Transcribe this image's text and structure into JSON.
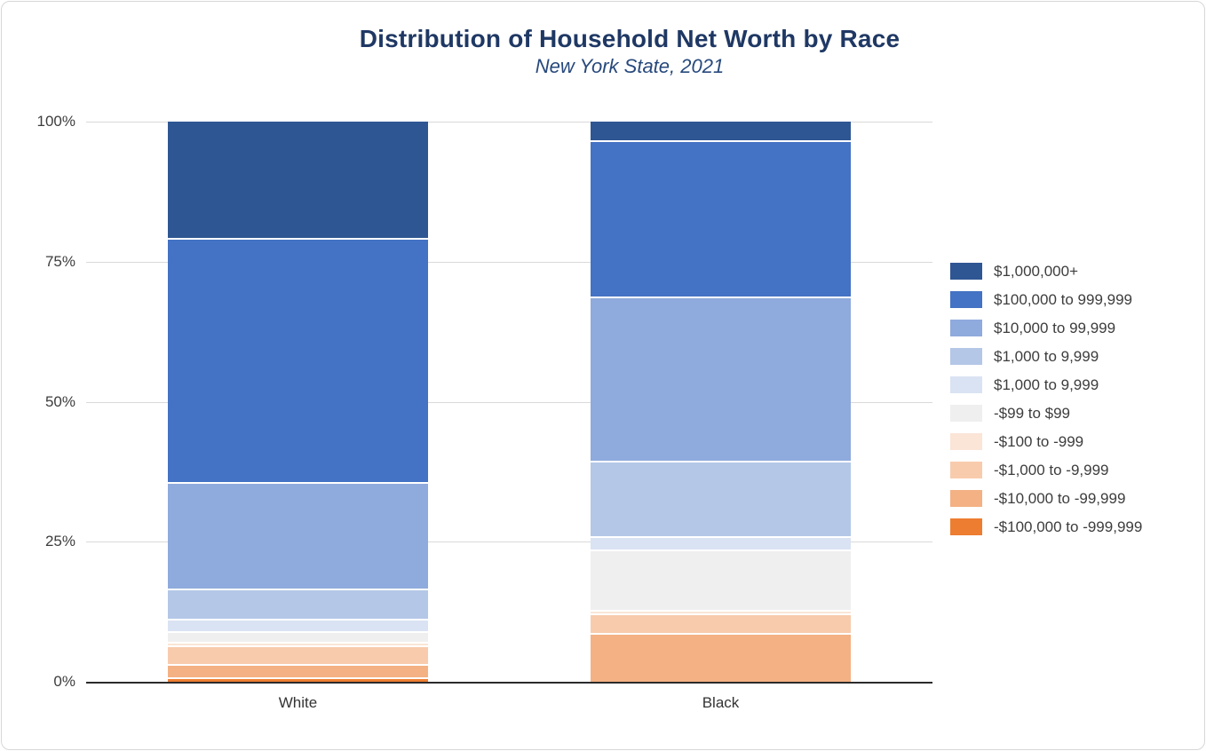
{
  "chart_data": {
    "type": "bar",
    "variant": "100-percent-stacked-vertical",
    "title": "Distribution of Household Net Worth by Race",
    "subtitle": "New York State, 2021",
    "categories": [
      "White",
      "Black"
    ],
    "y_ticks": [
      "100%",
      "75%",
      "50%",
      "25%",
      "0%"
    ],
    "ylim": [
      0,
      100
    ],
    "grid": true,
    "legend_position": "right",
    "axis_color": "#2b2b2b",
    "gridline_color": "#d9d9d9",
    "title_color": "#1f3864",
    "series": [
      {
        "name": "$1,000,000+",
        "color": "#2e5693",
        "values": [
          20.8,
          3.3
        ]
      },
      {
        "name": "$100,000 to 999,999",
        "color": "#4472c4",
        "values": [
          43.5,
          27.9
        ]
      },
      {
        "name": "$10,000 to 99,999",
        "color": "#8faadc",
        "values": [
          19.0,
          29.3
        ]
      },
      {
        "name": "$1,000 to 9,999",
        "color": "#b4c7e7",
        "values": [
          5.5,
          13.5
        ]
      },
      {
        "name": "$1,000 to 9,999",
        "color": "#dae3f3",
        "values": [
          2.2,
          2.4
        ]
      },
      {
        "name": "-$99 to $99",
        "color": "#efefef",
        "values": [
          1.8,
          10.8
        ]
      },
      {
        "name": "-$100 to -999",
        "color": "#fbe5d6",
        "values": [
          0.7,
          0.6
        ]
      },
      {
        "name": "-$1,000 to -9,999",
        "color": "#f8cbad",
        "values": [
          3.3,
          3.5
        ]
      },
      {
        "name": "-$10,000 to -99,999",
        "color": "#f4b183",
        "values": [
          2.4,
          8.7
        ]
      },
      {
        "name": "-$100,000 to -999,999",
        "color": "#ed7d31",
        "values": [
          0.8,
          0.0
        ]
      }
    ]
  }
}
